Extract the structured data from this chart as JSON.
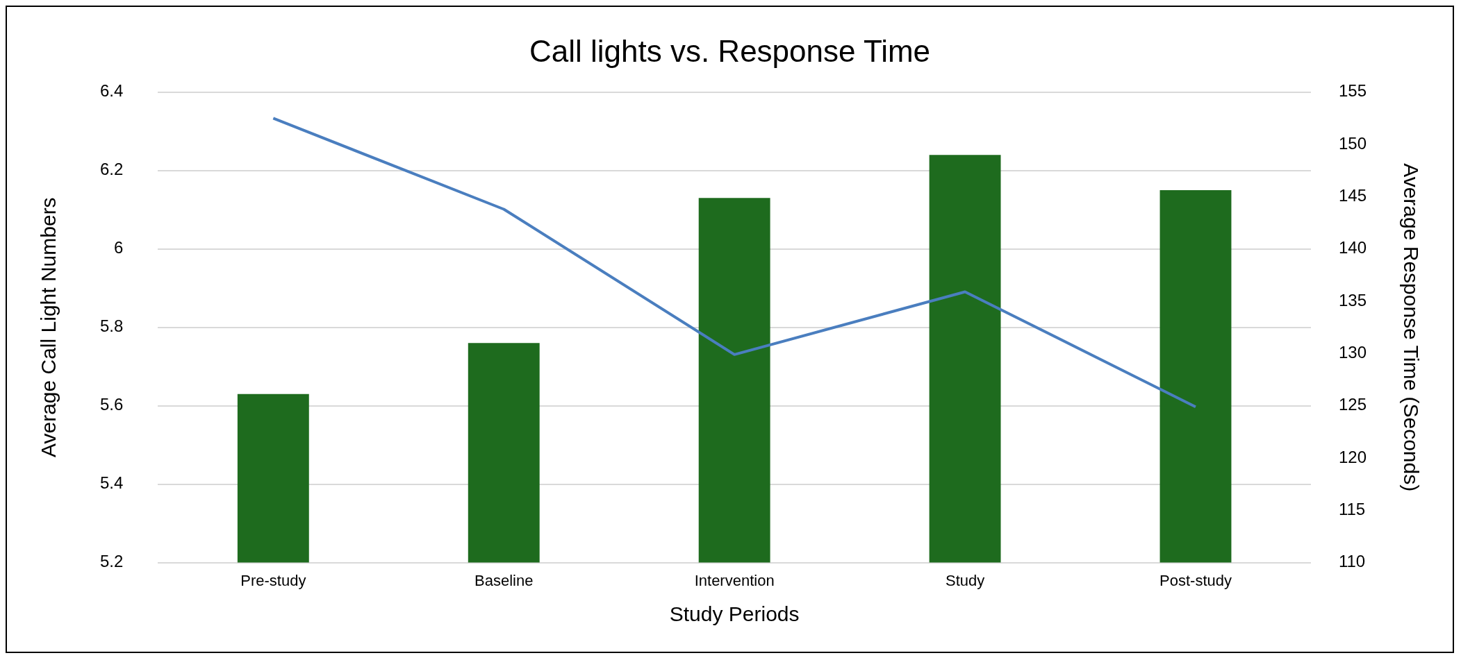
{
  "chart_data": {
    "type": "bar",
    "title": "Call lights vs. Response Time",
    "xlabel": "Study Periods",
    "ylabel": "Average Call Light Numbers",
    "y2label": "Average Response Time (Seconds)",
    "categories": [
      "Pre-study",
      "Baseline",
      "Intervention",
      "Study",
      "Post-study"
    ],
    "series": [
      {
        "color": "#1e6b1e",
        "values": [
          5.63,
          5.76,
          6.13,
          6.24,
          6.15
        ]
      },
      {
        "type": "line",
        "axis": "y2",
        "color": "#4a7ebf",
        "values": [
          152.5,
          143.8,
          129.9,
          135.9,
          124.9
        ]
      }
    ],
    "ylim": [
      5.2,
      6.4
    ],
    "yticks": [
      5.2,
      5.4,
      5.6,
      5.8,
      {
        "value": 6,
        "label": "6"
      },
      6.2,
      6.4
    ],
    "y2lim": [
      110,
      155
    ],
    "y2ticks": [
      110,
      115,
      120,
      125,
      130,
      135,
      140,
      145,
      150,
      155
    ],
    "grid": "y",
    "legend": false,
    "marker": "none",
    "line_style": "solid"
  }
}
